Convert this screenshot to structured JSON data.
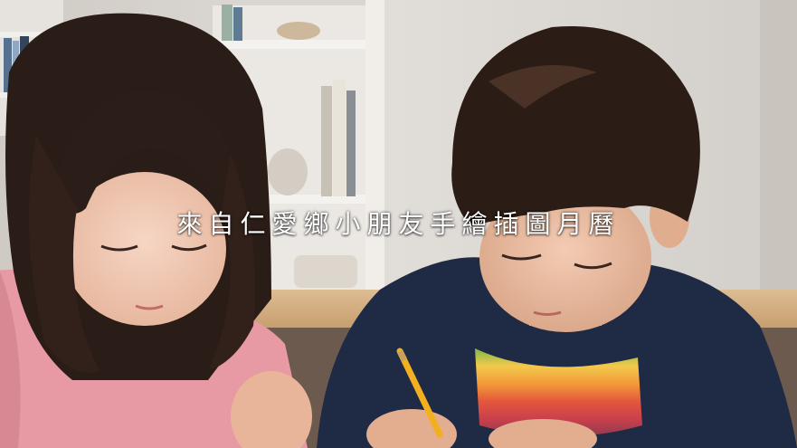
{
  "image": {
    "caption": "來自仁愛鄉小朋友手繪插圖月曆"
  },
  "colors": {
    "wall": "#dcd9d4",
    "shelf": "#e9e6e1",
    "table": "#d6b48a",
    "girl_shirt": "#e79aa3",
    "boy_shirt": "#1f2a44",
    "hair": "#2a1c16",
    "skin": "#efc7b1",
    "pencil": "#f2b021"
  }
}
